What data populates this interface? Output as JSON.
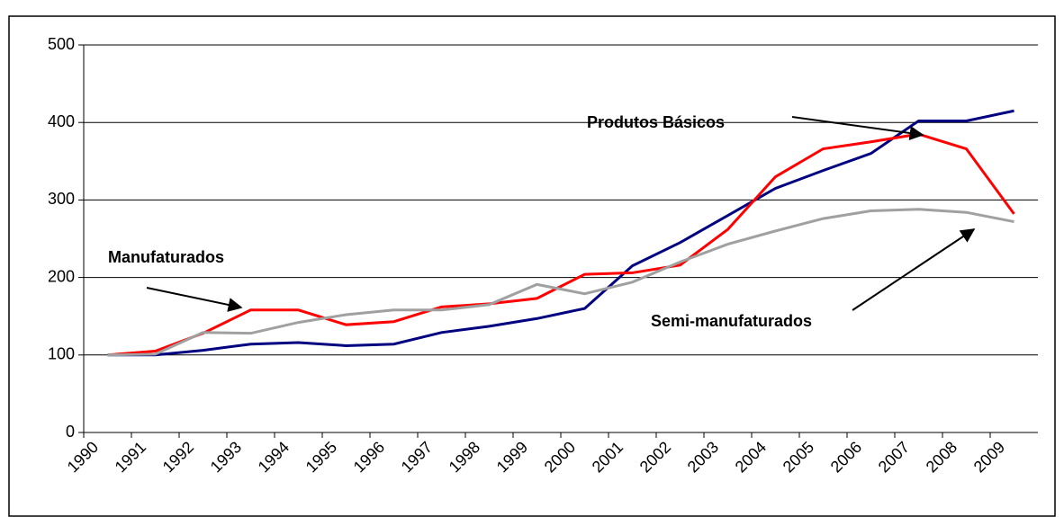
{
  "chart_data": {
    "type": "line",
    "categories": [
      "1990",
      "1991",
      "1992",
      "1993",
      "1994",
      "1995",
      "1996",
      "1997",
      "1998",
      "1999",
      "2000",
      "2001",
      "2002",
      "2003",
      "2004",
      "2005",
      "2006",
      "2007",
      "2008",
      "2009"
    ],
    "series": [
      {
        "name": "Produtos Básicos",
        "color": "#000080",
        "values": [
          100,
          100,
          106,
          114,
          116,
          112,
          114,
          129,
          137,
          147,
          160,
          215,
          245,
          280,
          315,
          338,
          360,
          402,
          402,
          415
        ]
      },
      {
        "name": "Manufaturados",
        "color": "#ff0000",
        "values": [
          100,
          105,
          128,
          158,
          158,
          139,
          143,
          162,
          166,
          173,
          204,
          206,
          216,
          262,
          330,
          366,
          375,
          385,
          366,
          282
        ]
      },
      {
        "name": "Semi-manufaturados",
        "color": "#a0a0a0",
        "values": [
          100,
          101,
          129,
          128,
          142,
          152,
          158,
          158,
          165,
          191,
          179,
          194,
          220,
          243,
          260,
          276,
          286,
          288,
          284,
          272
        ]
      }
    ],
    "ylim": [
      0,
      500
    ],
    "yticks": [
      0,
      100,
      200,
      300,
      400,
      500
    ],
    "grid": true
  }
}
